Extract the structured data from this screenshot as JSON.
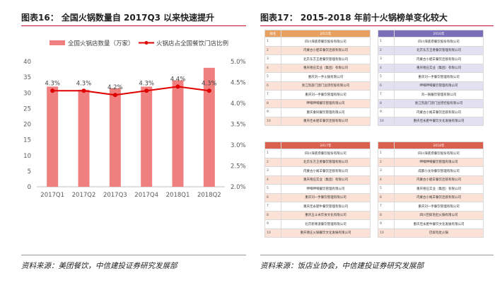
{
  "left": {
    "title": "图表16：  全国火锅数量自 2017Q3 以来快速提升",
    "source": "资料来源：美团餐饮，中信建投证券研究发展部"
  },
  "right": {
    "title": "图表17：  2015-2018 年前十火锅榜单变化较大",
    "source": "资料来源：饭店业协会，中信建投证券研究发展部"
  },
  "chart_data": {
    "type": "bar",
    "categories": [
      "2017Q1",
      "2017Q2",
      "2017Q3",
      "2017Q4",
      "2018Q1",
      "2018Q2"
    ],
    "series": [
      {
        "name": "全国火锅店数量（万家）",
        "type": "bar",
        "axis": "left",
        "values": [
          32,
          31,
          31.5,
          32,
          34,
          38
        ],
        "color": "#f08080"
      },
      {
        "name": "火锅店占全国餐饮门店比例",
        "type": "line",
        "axis": "right",
        "values": [
          4.3,
          4.3,
          4.2,
          4.3,
          4.4,
          4.3
        ],
        "color": "#e00000",
        "labels": [
          "4.3%",
          "4.3%",
          "4.2%",
          "4.3%",
          "4.4%",
          "4.3%"
        ]
      }
    ],
    "ylim_left": [
      0,
      40
    ],
    "yticks_left": [
      "0",
      "5",
      "10",
      "15",
      "20",
      "25",
      "30",
      "35",
      "40"
    ],
    "ylim_right": [
      2.0,
      5.0
    ],
    "yticks_right": [
      "2.0%",
      "2.5%",
      "3.0%",
      "3.5%",
      "4.0%",
      "4.5%",
      "5.0%"
    ],
    "legend_position": "top",
    "grid": false
  },
  "tables": [
    {
      "header": [
        "排名",
        "2015年"
      ],
      "header_color": "#e8a060",
      "rows": [
        [
          "1",
          "四川海底捞餐饮股份有限公司"
        ],
        [
          "2",
          "内蒙古小肥羊餐饮连锁有限公司"
        ],
        [
          "3",
          "北京东方王者餐饮管理有限公司"
        ],
        [
          "4",
          "重庆德庄实业（集团）有限公司"
        ],
        [
          "5",
          "重庆刘一手火锅有限公司"
        ],
        [
          "6",
          "浙江凯旋门澳门豆捞控股有限公司"
        ],
        [
          "7",
          "重庆刘一手餐饮管理有限公司"
        ],
        [
          "8",
          "呷哺呷哺餐饮管理有限公司"
        ],
        [
          "9",
          "重庆秦妈餐饮管理有限公司"
        ],
        [
          "10",
          "重庆佳永肥羊餐饮连锁有限公司"
        ]
      ]
    },
    {
      "header": [
        "",
        "2016年"
      ],
      "header_color": "#7a6fb8",
      "rows": [
        [
          "1",
          "四川海底捞餐饮股份有限公司"
        ],
        [
          "2",
          "北京东方王者餐饮管理有限公司"
        ],
        [
          "3",
          "内蒙古小肥羊餐饮连锁有限公司"
        ],
        [
          "4",
          "重庆德庄实业（集团）有限公司"
        ],
        [
          "5",
          "重庆刘一手餐饮管理有限公司"
        ],
        [
          "6",
          "呷哺呷哺餐饮管理有限公司"
        ],
        [
          "7",
          "刘一锅餐饮管理有限公司"
        ],
        [
          "8",
          "浙江凯旋门澳门豆捞控股有限公司"
        ],
        [
          "9",
          "内蒙古小尾羊餐饮连锁有限公司"
        ],
        [
          "10",
          "重庆佳永肥牛餐饮文化发展有限公司"
        ]
      ]
    },
    {
      "header": [
        "",
        "2017年"
      ],
      "header_color": "#d9604f",
      "rows": [
        [
          "1",
          "四川海底捞餐饮股份有限公司"
        ],
        [
          "2",
          "北京东方王者餐饮管理有限公司"
        ],
        [
          "3",
          "内蒙古小尾羊餐饮连锁有限公司"
        ],
        [
          "4",
          "重庆德庄实业（集团）有限公司"
        ],
        [
          "5",
          "呷哺呷哺餐饮管理有限公司"
        ],
        [
          "6",
          "重庆刘一手餐饮管理有限公司"
        ],
        [
          "7",
          "重庆佳永肥牛餐饮管理有限公司"
        ],
        [
          "8",
          "重庆五斗米饮食文化有限公司"
        ],
        [
          "9",
          "北京新辣道餐饮管理有限公司"
        ],
        [
          "10",
          "重庆德庄火锅餐饮文化发展有限公司"
        ]
      ]
    },
    {
      "header": [
        "",
        "2018年"
      ],
      "header_color": "#d9604f",
      "rows": [
        [
          "1",
          "四川海底捞餐饮股份有限公司"
        ],
        [
          "2",
          "呷哺呷哺餐饮管理有限公司"
        ],
        [
          "3",
          "成都小龙坎餐饮管理有限公司"
        ],
        [
          "4",
          "内蒙古小肥羊餐饮连锁有限公司"
        ],
        [
          "5",
          "重庆德庄实业（集团）有限公司"
        ],
        [
          "6",
          "内蒙古小尾羊餐饮连锁有限公司"
        ],
        [
          "7",
          "重庆刘一手餐饮管理有限公司"
        ],
        [
          "8",
          "四川巴奴毛肚火锅有限公司"
        ],
        [
          "9",
          "重庆佳永肥牛餐饮文化发展有限公司"
        ],
        [
          "10",
          "巴奴毛肚火锅"
        ]
      ]
    }
  ]
}
